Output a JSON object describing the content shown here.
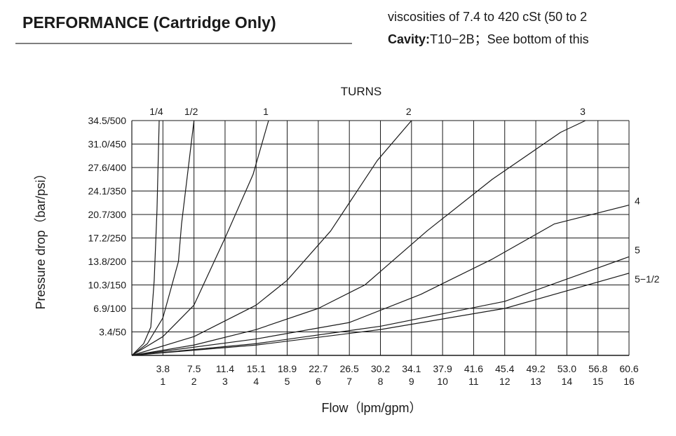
{
  "header": {
    "title": "PERFORMANCE (Cartridge Only)",
    "spec_line": "viscosities of 7.4 to 420 cSt (50 to 2",
    "cavity_label": "Cavity:",
    "cavity_text": "T10−2B；See bottom of this"
  },
  "chart_data": {
    "type": "line",
    "title": "TURNS",
    "x_label": "Flow（lpm/gpm）",
    "y_label": "Pressure drop（bar/psi）",
    "xlim": [
      0,
      16
    ],
    "ylim": [
      0,
      500
    ],
    "xticks": [
      {
        "value": 1,
        "label": "3.8"
      },
      {
        "value": 2,
        "label": "7.5"
      },
      {
        "value": 3,
        "label": "11.4"
      },
      {
        "value": 4,
        "label": "15.1"
      },
      {
        "value": 5,
        "label": "18.9"
      },
      {
        "value": 6,
        "label": "22.7"
      },
      {
        "value": 7,
        "label": "26.5"
      },
      {
        "value": 8,
        "label": "30.2"
      },
      {
        "value": 9,
        "label": "34.1"
      },
      {
        "value": 10,
        "label": "37.9"
      },
      {
        "value": 11,
        "label": "41.6"
      },
      {
        "value": 12,
        "label": "45.4"
      },
      {
        "value": 13,
        "label": "49.2"
      },
      {
        "value": 14,
        "label": "53.0"
      },
      {
        "value": 15,
        "label": "56.8"
      },
      {
        "value": 16,
        "label": "60.6"
      }
    ],
    "x2ticks": [
      1,
      2,
      3,
      4,
      5,
      6,
      7,
      8,
      9,
      10,
      11,
      12,
      13,
      14,
      15,
      16
    ],
    "yticks": [
      {
        "value": 50,
        "label": "3.4/50"
      },
      {
        "value": 100,
        "label": "6.9/100"
      },
      {
        "value": 150,
        "label": "10.3/150"
      },
      {
        "value": 200,
        "label": "13.8/200"
      },
      {
        "value": 250,
        "label": "17.2/250"
      },
      {
        "value": 300,
        "label": "20.7/300"
      },
      {
        "value": 350,
        "label": "24.1/350"
      },
      {
        "value": 400,
        "label": "27.6/400"
      },
      {
        "value": 450,
        "label": "31.0/450"
      },
      {
        "value": 500,
        "label": "34.5/500"
      }
    ],
    "grid": true,
    "color": "#1a1a1a",
    "series": [
      {
        "name": "1/4",
        "x": [
          0,
          0.38,
          0.61,
          0.72,
          0.81,
          0.88
        ],
        "values": [
          0,
          25,
          60,
          160,
          310,
          500
        ]
      },
      {
        "name": "1/2",
        "x": [
          0,
          0.5,
          1,
          1.5,
          1.6,
          2
        ],
        "values": [
          0,
          25,
          80,
          200,
          280,
          500
        ]
      },
      {
        "name": "1",
        "x": [
          0,
          1,
          2,
          3,
          3.9,
          4.4
        ],
        "values": [
          0,
          40,
          107,
          250,
          385,
          500
        ]
      },
      {
        "name": "2",
        "x": [
          0,
          2,
          4,
          5,
          6.4,
          7,
          7.9,
          9
        ],
        "values": [
          0,
          40,
          107,
          160,
          265,
          325,
          415,
          500
        ]
      },
      {
        "name": "3",
        "x": [
          0,
          2,
          4,
          6,
          7.5,
          9.5,
          11.6,
          13.8,
          14.6
        ],
        "values": [
          0,
          22,
          55,
          100,
          150,
          265,
          375,
          475,
          500
        ]
      },
      {
        "name": "4",
        "x": [
          0,
          4,
          7,
          9.3,
          11.6,
          13.6,
          16
        ],
        "values": [
          0,
          35,
          70,
          130,
          205,
          280,
          320
        ]
      },
      {
        "name": "5",
        "x": [
          0,
          4,
          8,
          12,
          16
        ],
        "values": [
          0,
          25,
          62,
          115,
          210
        ]
      },
      {
        "name": "5−1/2",
        "x": [
          0,
          4,
          8,
          12,
          16
        ],
        "values": [
          0,
          22,
          55,
          100,
          175
        ]
      }
    ]
  }
}
